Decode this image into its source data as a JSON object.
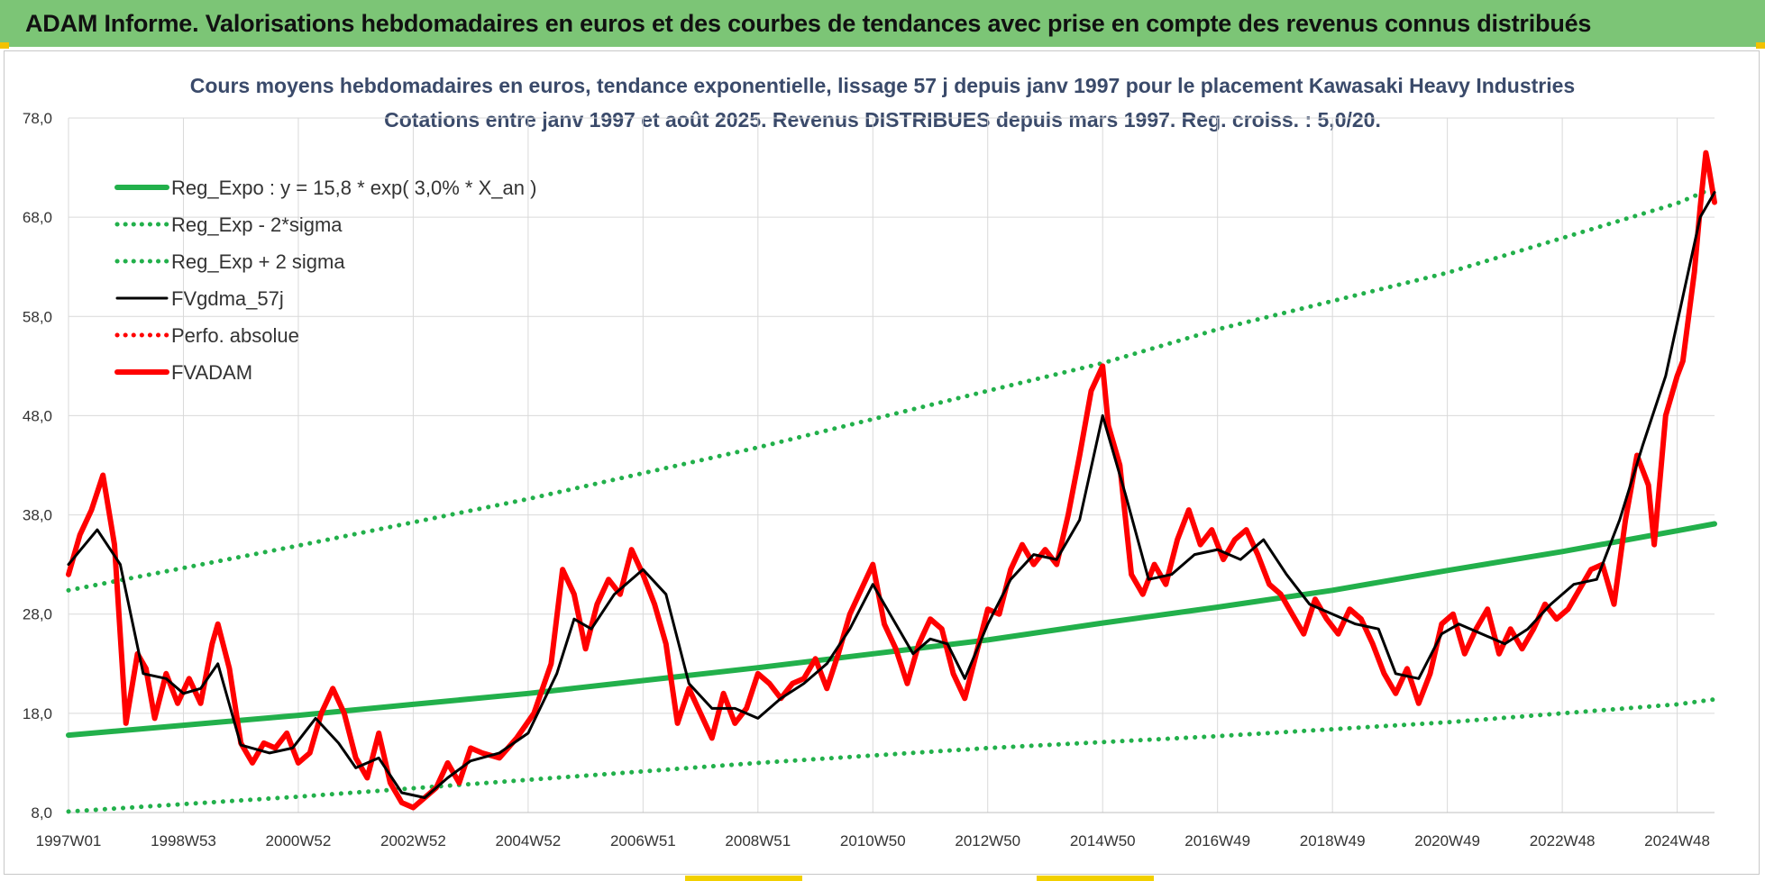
{
  "banner": {
    "title": "ADAM Informe. Valorisations hebdomadaires en euros et des courbes de tendances avec prise en compte des revenus connus distribués"
  },
  "colors": {
    "banner_bg": "#7cc576",
    "reg_expo": "#22b04b",
    "fv_gdma": "#000000",
    "fv_adam": "#ff0000",
    "perfo": "#ff0000"
  },
  "chart_data": {
    "type": "line",
    "title": "Cours moyens hebdomadaires en euros, tendance exponentielle, lissage 57 j depuis janv 1997 pour le placement Kawasaki Heavy Industries",
    "subtitle": "Cotations entre janv 1997 et août 2025. Revenus DISTRIBUES depuis mars 1997. Reg. croiss. : 5,0/20.",
    "xlabel": "",
    "ylabel": "",
    "x_range": [
      1997.0,
      2025.65
    ],
    "ylim": [
      8.0,
      78.0
    ],
    "y_ticks": [
      "8,0",
      "18,0",
      "28,0",
      "38,0",
      "48,0",
      "58,0",
      "68,0",
      "78,0"
    ],
    "x_ticks": [
      {
        "label": "1997W01",
        "x": 1997.0
      },
      {
        "label": "1998W53",
        "x": 1999.0
      },
      {
        "label": "2000W52",
        "x": 2001.0
      },
      {
        "label": "2002W52",
        "x": 2003.0
      },
      {
        "label": "2004W52",
        "x": 2005.0
      },
      {
        "label": "2006W51",
        "x": 2007.0
      },
      {
        "label": "2008W51",
        "x": 2009.0
      },
      {
        "label": "2010W50",
        "x": 2011.0
      },
      {
        "label": "2012W50",
        "x": 2013.0
      },
      {
        "label": "2014W50",
        "x": 2015.0
      },
      {
        "label": "2016W49",
        "x": 2017.0
      },
      {
        "label": "2018W49",
        "x": 2019.0
      },
      {
        "label": "2020W49",
        "x": 2021.0
      },
      {
        "label": "2022W48",
        "x": 2023.0
      },
      {
        "label": "2024W48",
        "x": 2025.0
      }
    ],
    "grid": true,
    "legend_position": "top-left",
    "series": [
      {
        "name": "Reg_Expo : y = 15,8 * exp( 3,0% *  X_an )",
        "style": "solid-thick",
        "color": "#22b04b",
        "x": [
          1997.0,
          1999.0,
          2001.0,
          2003.0,
          2005.0,
          2007.0,
          2009.0,
          2011.0,
          2013.0,
          2015.0,
          2017.0,
          2019.0,
          2021.0,
          2023.0,
          2025.0,
          2025.65
        ],
        "values": [
          15.8,
          16.8,
          17.8,
          18.9,
          20.0,
          21.3,
          22.6,
          24.0,
          25.4,
          27.1,
          28.7,
          30.4,
          32.4,
          34.3,
          36.4,
          37.1
        ]
      },
      {
        "name": "Reg_Exp - 2*sigma",
        "style": "dotted",
        "color": "#22b04b",
        "x": [
          1997.0,
          2001.0,
          2005.0,
          2009.0,
          2013.0,
          2017.0,
          2021.0,
          2025.0,
          2025.65
        ],
        "values": [
          8.1,
          9.6,
          11.3,
          13.0,
          14.5,
          15.7,
          17.1,
          18.9,
          19.4
        ]
      },
      {
        "name": "Reg_Exp + 2 sigma",
        "style": "dotted",
        "color": "#22b04b",
        "x": [
          1997.0,
          2001.0,
          2005.0,
          2009.0,
          2013.0,
          2015.0,
          2017.0,
          2021.0,
          2025.0,
          2025.65
        ],
        "values": [
          30.4,
          34.9,
          39.6,
          44.8,
          50.5,
          53.3,
          56.7,
          62.4,
          69.4,
          71.0
        ]
      },
      {
        "name": "FVgdma_57j",
        "style": "solid",
        "color": "#000000",
        "x": [
          1997.0,
          1997.5,
          1997.9,
          1998.3,
          1998.7,
          1999.0,
          1999.3,
          1999.6,
          2000.0,
          2000.5,
          2000.9,
          2001.3,
          2001.7,
          2002.0,
          2002.4,
          2002.8,
          2003.2,
          2003.6,
          2004.0,
          2004.5,
          2005.0,
          2005.5,
          2005.8,
          2006.1,
          2006.5,
          2007.0,
          2007.4,
          2007.8,
          2008.2,
          2008.6,
          2009.0,
          2009.4,
          2009.8,
          2010.2,
          2010.6,
          2011.0,
          2011.3,
          2011.7,
          2012.0,
          2012.3,
          2012.6,
          2013.0,
          2013.4,
          2013.8,
          2014.2,
          2014.6,
          2015.0,
          2015.4,
          2015.8,
          2016.2,
          2016.6,
          2017.0,
          2017.4,
          2017.8,
          2018.2,
          2018.6,
          2019.0,
          2019.4,
          2019.8,
          2020.1,
          2020.5,
          2020.9,
          2021.2,
          2021.6,
          2022.0,
          2022.4,
          2022.8,
          2023.2,
          2023.6,
          2024.0,
          2024.4,
          2024.8,
          2025.1,
          2025.4,
          2025.65
        ],
        "values": [
          33.0,
          36.5,
          33.0,
          22.0,
          21.5,
          20.0,
          20.5,
          23.0,
          14.8,
          14.0,
          14.5,
          17.5,
          15.0,
          12.5,
          13.5,
          10.0,
          9.5,
          11.5,
          13.2,
          14.0,
          16.0,
          22.0,
          27.5,
          26.5,
          30.0,
          32.5,
          30.0,
          21.0,
          18.5,
          18.5,
          17.5,
          19.5,
          21.0,
          23.0,
          26.5,
          31.0,
          28.0,
          24.0,
          25.5,
          25.0,
          21.5,
          27.0,
          31.5,
          34.0,
          33.5,
          37.5,
          48.0,
          40.0,
          31.5,
          32.0,
          34.0,
          34.5,
          33.5,
          35.5,
          32.0,
          29.0,
          28.0,
          27.0,
          26.5,
          22.0,
          21.5,
          26.0,
          27.0,
          26.0,
          25.0,
          26.5,
          29.0,
          31.0,
          31.5,
          37.5,
          45.0,
          52.0,
          60.0,
          68.0,
          70.5
        ]
      },
      {
        "name": "Perfo. absolue",
        "style": "dotted",
        "color": "#ff0000",
        "x": [],
        "values": []
      },
      {
        "name": "FVADAM",
        "style": "solid-thick",
        "color": "#ff0000",
        "x": [
          1997.0,
          1997.2,
          1997.4,
          1997.6,
          1997.8,
          1998.0,
          1998.2,
          1998.35,
          1998.5,
          1998.7,
          1998.9,
          1999.1,
          1999.3,
          1999.5,
          1999.6,
          1999.8,
          2000.0,
          2000.2,
          2000.4,
          2000.6,
          2000.8,
          2001.0,
          2001.2,
          2001.4,
          2001.6,
          2001.8,
          2002.0,
          2002.2,
          2002.4,
          2002.6,
          2002.8,
          2003.0,
          2003.2,
          2003.4,
          2003.6,
          2003.8,
          2004.0,
          2004.2,
          2004.5,
          2004.8,
          2005.1,
          2005.4,
          2005.6,
          2005.8,
          2006.0,
          2006.2,
          2006.4,
          2006.6,
          2006.8,
          2007.0,
          2007.2,
          2007.4,
          2007.6,
          2007.8,
          2008.0,
          2008.2,
          2008.4,
          2008.6,
          2008.8,
          2009.0,
          2009.2,
          2009.4,
          2009.6,
          2009.8,
          2010.0,
          2010.2,
          2010.4,
          2010.6,
          2010.8,
          2011.0,
          2011.2,
          2011.4,
          2011.6,
          2011.8,
          2012.0,
          2012.2,
          2012.4,
          2012.6,
          2012.8,
          2013.0,
          2013.2,
          2013.4,
          2013.6,
          2013.8,
          2014.0,
          2014.2,
          2014.4,
          2014.6,
          2014.8,
          2015.0,
          2015.1,
          2015.3,
          2015.5,
          2015.7,
          2015.9,
          2016.1,
          2016.3,
          2016.5,
          2016.7,
          2016.9,
          2017.1,
          2017.3,
          2017.5,
          2017.7,
          2017.9,
          2018.1,
          2018.3,
          2018.5,
          2018.7,
          2018.9,
          2019.1,
          2019.3,
          2019.5,
          2019.7,
          2019.9,
          2020.1,
          2020.3,
          2020.5,
          2020.7,
          2020.9,
          2021.1,
          2021.3,
          2021.5,
          2021.7,
          2021.9,
          2022.1,
          2022.3,
          2022.5,
          2022.7,
          2022.9,
          2023.1,
          2023.3,
          2023.5,
          2023.7,
          2023.9,
          2024.1,
          2024.3,
          2024.5,
          2024.6,
          2024.8,
          2025.0,
          2025.1,
          2025.2,
          2025.3,
          2025.4,
          2025.5,
          2025.55,
          2025.65
        ],
        "values": [
          32.0,
          36.0,
          38.5,
          42.0,
          35.0,
          17.0,
          24.0,
          22.5,
          17.5,
          22.0,
          19.0,
          21.5,
          19.0,
          25.0,
          27.0,
          22.5,
          15.0,
          13.0,
          15.0,
          14.5,
          16.0,
          13.0,
          14.0,
          18.0,
          20.5,
          18.0,
          13.5,
          11.5,
          16.0,
          11.0,
          9.0,
          8.5,
          9.5,
          10.5,
          13.0,
          11.0,
          14.5,
          14.0,
          13.5,
          15.5,
          18.0,
          23.0,
          32.5,
          30.0,
          24.5,
          29.0,
          31.5,
          30.0,
          34.5,
          32.0,
          29.0,
          25.0,
          17.0,
          20.5,
          18.0,
          15.5,
          20.0,
          17.0,
          18.5,
          22.0,
          21.0,
          19.5,
          21.0,
          21.5,
          23.5,
          20.5,
          24.0,
          28.0,
          30.5,
          33.0,
          27.0,
          24.5,
          21.0,
          25.0,
          27.5,
          26.5,
          22.0,
          19.5,
          24.0,
          28.5,
          28.0,
          32.5,
          35.0,
          33.0,
          34.5,
          33.0,
          38.0,
          44.0,
          50.5,
          53.0,
          47.0,
          43.0,
          32.0,
          30.0,
          33.0,
          31.0,
          35.5,
          38.5,
          35.0,
          36.5,
          33.5,
          35.5,
          36.5,
          34.0,
          31.0,
          30.0,
          28.0,
          26.0,
          29.5,
          27.5,
          26.0,
          28.5,
          27.5,
          25.0,
          22.0,
          20.0,
          22.5,
          19.0,
          22.0,
          27.0,
          28.0,
          24.0,
          26.5,
          28.5,
          24.0,
          26.5,
          24.5,
          26.5,
          29.0,
          27.5,
          28.5,
          30.5,
          32.5,
          33.0,
          29.0,
          37.5,
          44.0,
          41.0,
          35.0,
          48.0,
          52.0,
          53.5,
          58.0,
          62.5,
          69.0,
          74.5,
          73.0,
          69.5
        ]
      }
    ]
  }
}
